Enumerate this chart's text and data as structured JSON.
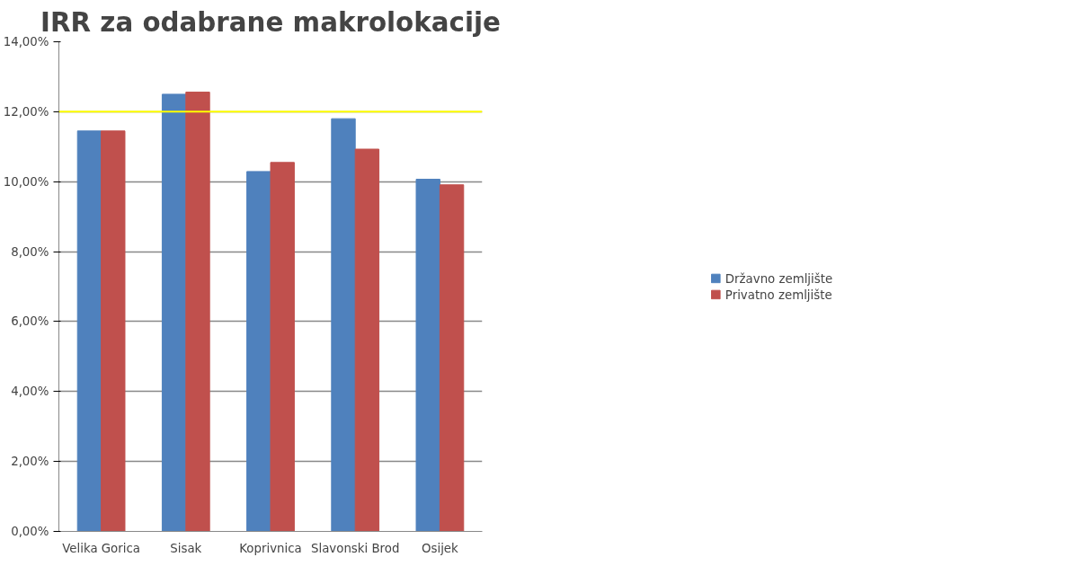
{
  "chart_data": {
    "type": "bar",
    "title": "IRR za odabrane makrolokacije",
    "categories": [
      "Velika Gorica",
      "Sisak",
      "Koprivnica",
      "Slavonski Brod",
      "Osijek"
    ],
    "series": [
      {
        "name": "Državno zemljište",
        "color": "#4f81bd",
        "values": [
          11.45,
          12.5,
          10.29,
          11.8,
          10.07
        ]
      },
      {
        "name": "Privatno zemljište",
        "color": "#c0504d",
        "values": [
          11.45,
          12.56,
          10.55,
          10.93,
          9.91
        ]
      }
    ],
    "ylim": [
      0,
      14
    ],
    "yticks": [
      {
        "value": 0,
        "label": "0,00%"
      },
      {
        "value": 2,
        "label": "2,00%"
      },
      {
        "value": 4,
        "label": "4,00%"
      },
      {
        "value": 6,
        "label": "6,00%"
      },
      {
        "value": 8,
        "label": "8,00%"
      },
      {
        "value": 10,
        "label": "10,00%"
      },
      {
        "value": 12,
        "label": "12,00%"
      },
      {
        "value": 14,
        "label": "14,00%"
      }
    ],
    "ref_lines": [
      {
        "axis": "y",
        "value": 12,
        "label": null,
        "color": "#ffff00"
      }
    ],
    "grid": "y",
    "legend": "right"
  }
}
